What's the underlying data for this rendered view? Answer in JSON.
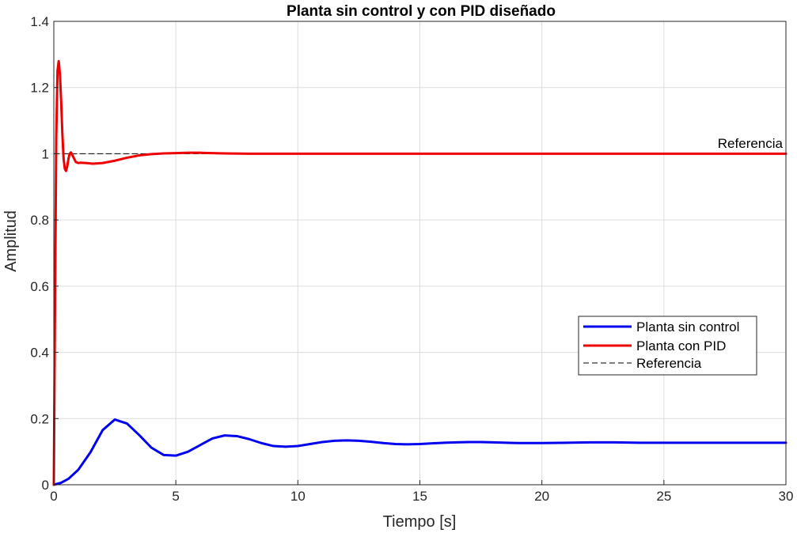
{
  "chart_data": {
    "type": "line",
    "title": "Planta sin control y con PID diseñado",
    "xlabel": "Tiempo [s]",
    "ylabel": "Amplitud",
    "xlim": [
      0,
      30
    ],
    "ylim": [
      0,
      1.4
    ],
    "xticks": [
      0,
      5,
      10,
      15,
      20,
      25,
      30
    ],
    "xtick_labels": [
      "0",
      "5",
      "10",
      "15",
      "20",
      "25",
      "30"
    ],
    "yticks": [
      0,
      0.2,
      0.4,
      0.6,
      0.8,
      1,
      1.2,
      1.4
    ],
    "ytick_labels": [
      "0",
      "0.2",
      "0.4",
      "0.6",
      "0.8",
      "1",
      "1.2",
      "1.4"
    ],
    "grid": true,
    "legend_position": "right",
    "series": [
      {
        "name": "Planta sin control",
        "color": "#0000ee",
        "style": "solid",
        "x": [
          0,
          0.3,
          0.6,
          1.0,
          1.5,
          2.0,
          2.5,
          3.0,
          3.5,
          4.0,
          4.5,
          5.0,
          5.5,
          6.0,
          6.5,
          7.0,
          7.5,
          8.0,
          8.5,
          9.0,
          9.5,
          10.0,
          10.5,
          11.0,
          11.5,
          12.0,
          12.5,
          13.0,
          13.5,
          14.0,
          14.5,
          15.0,
          15.5,
          16.0,
          16.5,
          17.0,
          17.5,
          18.0,
          19.0,
          20.0,
          21.0,
          22.0,
          23.0,
          24.0,
          25.0,
          26.0,
          27.0,
          28.0,
          29.0,
          30.0
        ],
        "y": [
          0,
          0.006,
          0.018,
          0.045,
          0.098,
          0.165,
          0.197,
          0.185,
          0.15,
          0.112,
          0.09,
          0.088,
          0.1,
          0.12,
          0.14,
          0.149,
          0.147,
          0.138,
          0.126,
          0.117,
          0.115,
          0.117,
          0.123,
          0.129,
          0.133,
          0.134,
          0.133,
          0.13,
          0.126,
          0.123,
          0.122,
          0.123,
          0.125,
          0.127,
          0.128,
          0.129,
          0.129,
          0.128,
          0.126,
          0.126,
          0.127,
          0.128,
          0.128,
          0.127,
          0.127,
          0.127,
          0.127,
          0.127,
          0.127,
          0.127
        ]
      },
      {
        "name": "Planta con PID",
        "color": "#ee0000",
        "style": "solid",
        "x": [
          0,
          0.05,
          0.1,
          0.15,
          0.2,
          0.25,
          0.3,
          0.35,
          0.4,
          0.45,
          0.5,
          0.55,
          0.6,
          0.65,
          0.7,
          0.8,
          0.9,
          1.0,
          1.1,
          1.3,
          1.6,
          2.0,
          2.5,
          3.0,
          3.5,
          4.0,
          4.5,
          5.0,
          5.5,
          6.0,
          6.5,
          7.0,
          8.0,
          10.0,
          15.0,
          20.0,
          25.0,
          30.0
        ],
        "y": [
          0,
          0.55,
          1.05,
          1.25,
          1.28,
          1.24,
          1.16,
          1.06,
          0.985,
          0.955,
          0.948,
          0.962,
          0.985,
          1.0,
          1.004,
          0.99,
          0.975,
          0.972,
          0.973,
          0.972,
          0.97,
          0.972,
          0.979,
          0.988,
          0.995,
          0.999,
          1.001,
          1.002,
          1.003,
          1.003,
          1.002,
          1.001,
          1.0,
          1.0,
          1.0,
          1.0,
          1.0,
          1.0
        ]
      },
      {
        "name": "Referencia",
        "color": "#000000",
        "style": "dashed",
        "x": [
          0,
          30
        ],
        "y": [
          1,
          1
        ]
      }
    ],
    "annotations": [
      {
        "text": "Referencia",
        "x": 30,
        "y": 1
      }
    ]
  }
}
